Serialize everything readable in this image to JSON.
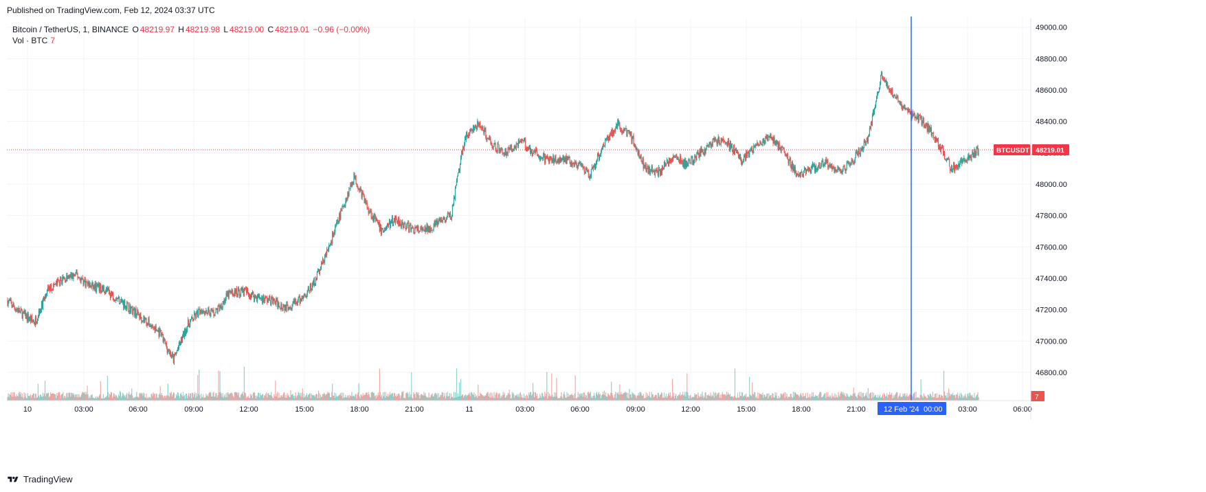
{
  "published": "Published on TradingView.com, Feb 12, 2024 03:37 UTC",
  "legend": {
    "symbol": "Bitcoin / TetherUS, 1, BINANCE",
    "o_label": "O",
    "o": "48219.97",
    "h_label": "H",
    "h": "48219.98",
    "l_label": "L",
    "l": "48219.00",
    "c_label": "C",
    "c": "48219.01",
    "change": "−0.96 (−0.00%)"
  },
  "volume_legend": {
    "label": "Vol · BTC",
    "value": "7"
  },
  "price_tag": {
    "symbol": "BTCUSDT",
    "price": "48219.01"
  },
  "volume_tag": "7",
  "crosshair_label": {
    "date": "12 Feb '24",
    "time": "00:00"
  },
  "footer": "TradingView",
  "colors": {
    "up": "#26a69a",
    "down": "#ef5350",
    "crosshair": "#2962ff",
    "price_line": "#f23645"
  },
  "chart_data": {
    "type": "candlestick",
    "symbol": "BTCUSDT",
    "interval": "1",
    "y_axis": {
      "ticks": [
        46800,
        47000,
        47200,
        47400,
        47600,
        47800,
        48000,
        48200,
        48400,
        48600,
        48800,
        49000
      ],
      "range": [
        46620,
        49060
      ],
      "position": "right"
    },
    "x_axis": {
      "ticks": [
        "10",
        "03:00",
        "06:00",
        "09:00",
        "12:00",
        "15:00",
        "18:00",
        "21:00",
        "11",
        "03:00",
        "06:00",
        "09:00",
        "12:00",
        "15:00",
        "18:00",
        "21:00",
        "03:00",
        "06:00"
      ]
    },
    "last_price": 48219.01,
    "crosshair_time": "12 Feb '24 00:00",
    "close_path_hourly": [
      [
        0,
        47260
      ],
      [
        1,
        47180
      ],
      [
        2,
        47120
      ],
      [
        3,
        47330
      ],
      [
        4,
        47390
      ],
      [
        5,
        47420
      ],
      [
        6,
        47350
      ],
      [
        7,
        47330
      ],
      [
        8,
        47270
      ],
      [
        9,
        47200
      ],
      [
        10,
        47130
      ],
      [
        11,
        47050
      ],
      [
        12,
        46880
      ],
      [
        13,
        47100
      ],
      [
        14,
        47200
      ],
      [
        15,
        47180
      ],
      [
        16,
        47300
      ],
      [
        17,
        47320
      ],
      [
        18,
        47280
      ],
      [
        19,
        47260
      ],
      [
        20,
        47220
      ],
      [
        21,
        47250
      ],
      [
        22,
        47350
      ],
      [
        23,
        47550
      ],
      [
        24,
        47800
      ],
      [
        25,
        48050
      ],
      [
        26,
        47850
      ],
      [
        27,
        47700
      ],
      [
        28,
        47780
      ],
      [
        29,
        47720
      ],
      [
        30,
        47700
      ],
      [
        31,
        47750
      ],
      [
        32,
        47800
      ],
      [
        33,
        48300
      ],
      [
        34,
        48380
      ],
      [
        35,
        48250
      ],
      [
        36,
        48200
      ],
      [
        37,
        48280
      ],
      [
        38,
        48200
      ],
      [
        39,
        48150
      ],
      [
        40,
        48170
      ],
      [
        41,
        48130
      ],
      [
        42,
        48050
      ],
      [
        43,
        48260
      ],
      [
        44,
        48380
      ],
      [
        45,
        48300
      ],
      [
        46,
        48100
      ],
      [
        47,
        48080
      ],
      [
        48,
        48180
      ],
      [
        49,
        48120
      ],
      [
        50,
        48200
      ],
      [
        51,
        48280
      ],
      [
        52,
        48250
      ],
      [
        53,
        48150
      ],
      [
        54,
        48250
      ],
      [
        55,
        48300
      ],
      [
        56,
        48200
      ],
      [
        57,
        48050
      ],
      [
        58,
        48100
      ],
      [
        59,
        48130
      ],
      [
        60,
        48080
      ],
      [
        61,
        48160
      ],
      [
        62,
        48280
      ],
      [
        63,
        48700
      ],
      [
        64,
        48550
      ],
      [
        65,
        48450
      ],
      [
        66,
        48400
      ],
      [
        67,
        48280
      ],
      [
        68,
        48100
      ],
      [
        69,
        48150
      ],
      [
        70,
        48219
      ]
    ]
  }
}
